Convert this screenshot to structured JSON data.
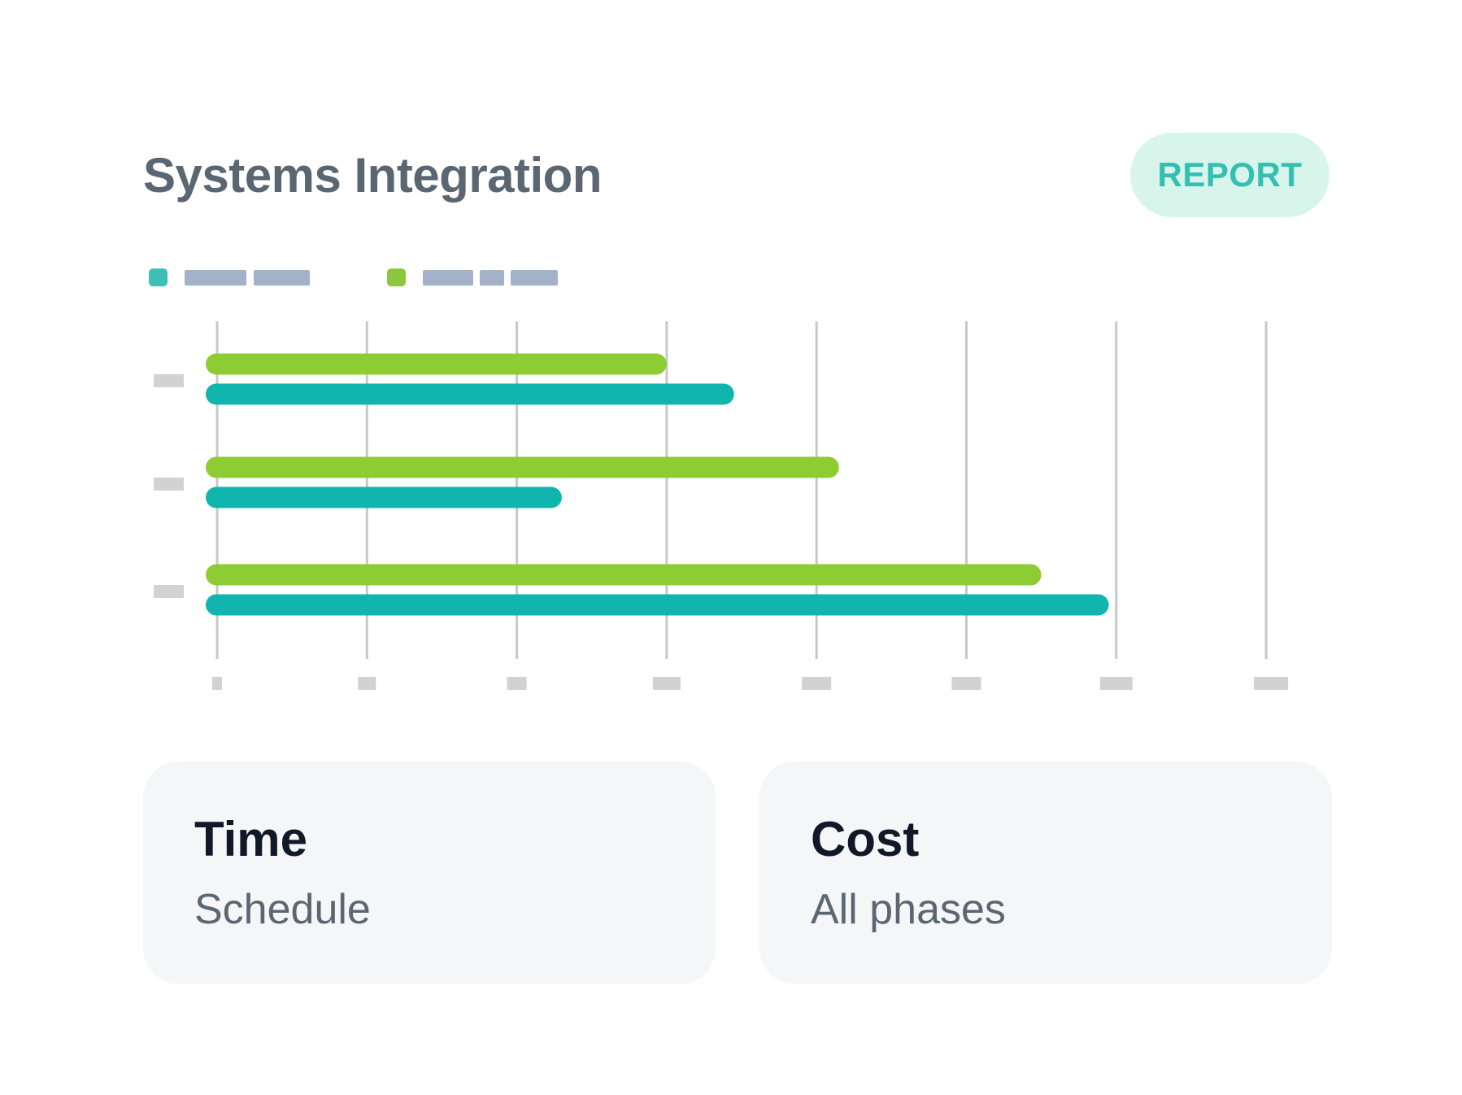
{
  "header": {
    "title": "Systems Integration",
    "report_label": "REPORT"
  },
  "colors": {
    "series_teal": "#10b5ad",
    "series_green": "#8dcd33",
    "legend_teal": "#3dbfb5",
    "legend_green": "#8dc63f",
    "legend_placeholder": "#a3b2c8",
    "gridline": "#c8c8c8",
    "tick_placeholder": "#d2d2d2",
    "report_bg": "#d8f5ec",
    "report_text": "#34bfb0"
  },
  "chart_data": {
    "type": "bar",
    "orientation": "horizontal",
    "legend_placement": "top-left",
    "grid": true,
    "xlim": [
      0,
      7
    ],
    "categories": [
      "",
      "",
      ""
    ],
    "series": [
      {
        "color": "#8dcd33",
        "values": [
          3.0,
          4.15,
          5.5
        ]
      },
      {
        "color": "#10b5ad",
        "values": [
          3.45,
          2.3,
          5.95
        ]
      }
    ]
  },
  "cards": [
    {
      "title": "Time",
      "subtitle": "Schedule"
    },
    {
      "title": "Cost",
      "subtitle": "All phases"
    }
  ]
}
